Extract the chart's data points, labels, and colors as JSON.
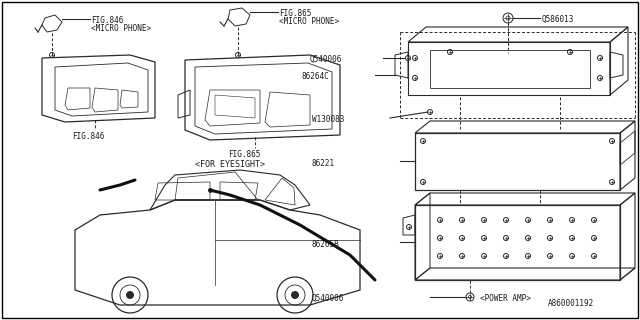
{
  "bg_color": "#ffffff",
  "line_color": "#2a2a2a",
  "text_color": "#1a1a1a",
  "fig_width": 6.4,
  "fig_height": 3.2,
  "dpi": 100,
  "bottom_ref": "A860001192",
  "labels": {
    "fig846_top": "FIG.846",
    "fig846_top2": "<MICRO PHONE>",
    "fig846_bot": "FIG.846",
    "fig865_top": "FIG.865",
    "fig865_top2": "<MICRO PHONE>",
    "fig865_bot": "FIG.865",
    "for_eyesight": "<FOR EYESIGHT>",
    "q586013": "Q586013",
    "q540006_top": "Q540006",
    "b86264c": "86264C",
    "w130083": "W130083",
    "b86221": "86221",
    "b86265b": "86265B",
    "q540006_bot": "Q540006",
    "power_amp": "<POWER AMP>"
  }
}
